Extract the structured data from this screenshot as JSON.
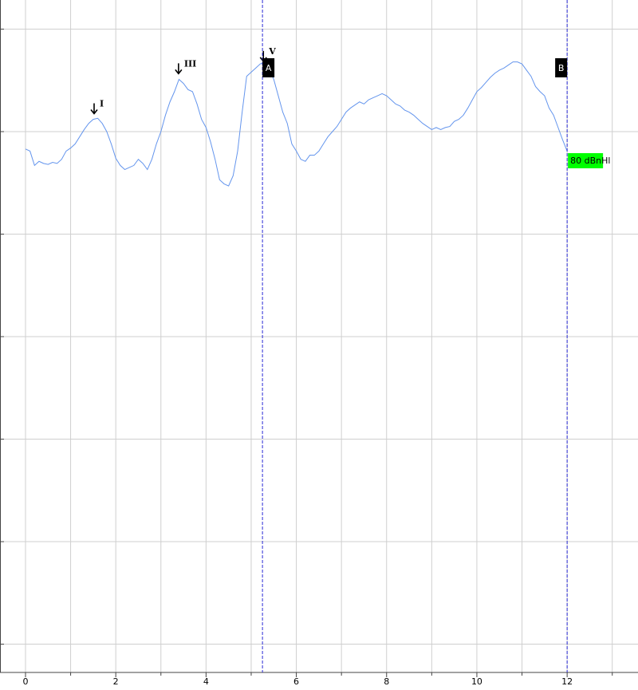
{
  "chart_data": {
    "type": "line",
    "x": [
      0,
      0.1,
      0.2,
      0.3,
      0.4,
      0.5,
      0.6,
      0.7,
      0.8,
      0.9,
      1,
      1.1,
      1.2,
      1.3,
      1.4,
      1.5,
      1.6,
      1.7,
      1.8,
      1.9,
      2,
      2.1,
      2.2,
      2.3,
      2.4,
      2.5,
      2.6,
      2.7,
      2.8,
      2.9,
      3,
      3.1,
      3.2,
      3.3,
      3.4,
      3.5,
      3.6,
      3.7,
      3.8,
      3.9,
      4,
      4.1,
      4.2,
      4.3,
      4.4,
      4.5,
      4.6,
      4.7,
      4.8,
      4.9,
      5,
      5.1,
      5.2,
      5.3,
      5.4,
      5.5,
      5.6,
      5.7,
      5.8,
      5.9,
      6,
      6.1,
      6.2,
      6.3,
      6.4,
      6.5,
      6.6,
      6.7,
      6.8,
      6.9,
      7,
      7.1,
      7.2,
      7.3,
      7.4,
      7.5,
      7.6,
      7.7,
      7.8,
      7.9,
      8,
      8.1,
      8.2,
      8.3,
      8.4,
      8.5,
      8.6,
      8.7,
      8.8,
      8.9,
      9,
      9.1,
      9.2,
      9.3,
      9.4,
      9.5,
      9.6,
      9.7,
      9.8,
      9.9,
      10,
      10.1,
      10.2,
      10.3,
      10.4,
      10.5,
      10.6,
      10.7,
      10.8,
      10.9,
      11,
      11.1,
      11.2,
      11.3,
      11.4,
      11.5,
      11.6,
      11.7,
      11.8,
      11.9,
      12
    ],
    "series": [
      {
        "color": "#6495ed",
        "values": [
          -0.17,
          -0.19,
          -0.33,
          -0.29,
          -0.31,
          -0.32,
          -0.3,
          -0.31,
          -0.27,
          -0.19,
          -0.16,
          -0.12,
          -0.05,
          0.02,
          0.08,
          0.12,
          0.13,
          0.08,
          0,
          -0.12,
          -0.26,
          -0.33,
          -0.37,
          -0.35,
          -0.33,
          -0.27,
          -0.31,
          -0.37,
          -0.27,
          -0.12,
          0,
          0.16,
          0.29,
          0.39,
          0.51,
          0.47,
          0.41,
          0.39,
          0.27,
          0.12,
          0.04,
          -0.1,
          -0.27,
          -0.47,
          -0.51,
          -0.53,
          -0.43,
          -0.19,
          0.19,
          0.54,
          0.58,
          0.62,
          0.66,
          0.68,
          0.6,
          0.51,
          0.35,
          0.19,
          0.08,
          -0.12,
          -0.19,
          -0.27,
          -0.29,
          -0.23,
          -0.23,
          -0.19,
          -0.12,
          -0.05,
          0,
          0.05,
          0.12,
          0.19,
          0.23,
          0.26,
          0.29,
          0.27,
          0.31,
          0.33,
          0.35,
          0.37,
          0.35,
          0.31,
          0.27,
          0.25,
          0.21,
          0.19,
          0.16,
          0.12,
          0.08,
          0.05,
          0.02,
          0.04,
          0.02,
          0.04,
          0.05,
          0.1,
          0.12,
          0.16,
          0.23,
          0.31,
          0.39,
          0.43,
          0.48,
          0.53,
          0.57,
          0.6,
          0.62,
          0.65,
          0.68,
          0.68,
          0.66,
          0.6,
          0.54,
          0.44,
          0.39,
          0.35,
          0.23,
          0.16,
          0.04,
          -0.08,
          -0.19
        ]
      }
    ],
    "xlim": [
      -0.565,
      13.57
    ],
    "ylim": [
      -5.276,
      1.284
    ],
    "xticks": [
      0,
      2,
      4,
      6,
      8,
      10,
      12
    ],
    "x_minor_ticks": [
      1,
      3,
      5,
      7,
      9,
      11,
      13
    ],
    "yticks": [
      1,
      0,
      -1,
      -2,
      -3,
      -4,
      -5
    ],
    "grid": true,
    "peaks": [
      {
        "label": "I",
        "x": 1.52,
        "y": 0.23
      },
      {
        "label": "III",
        "x": 3.39,
        "y": 0.62
      },
      {
        "label": "V",
        "x": 5.27,
        "y": 0.74
      }
    ],
    "cursors": [
      {
        "label": "A",
        "x": 5.25,
        "color": "#2b2bd6"
      },
      {
        "label": "B",
        "x": 12,
        "color": "#2b2bd6"
      }
    ],
    "level_label": "80 dBnHl",
    "level_color": "#00ff00"
  }
}
